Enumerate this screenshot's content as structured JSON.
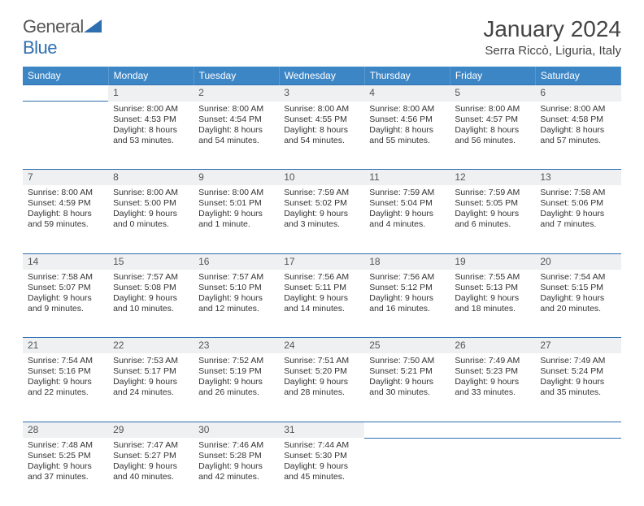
{
  "brand": {
    "part1": "General",
    "part2": "Blue"
  },
  "title": "January 2024",
  "location": "Serra Riccò, Liguria, Italy",
  "colors": {
    "header_bg": "#3d86c6",
    "header_text": "#ffffff",
    "rule": "#2f6fb0",
    "daynum_bg": "#eef0f1",
    "logo_blue": "#2f6fb0",
    "text": "#333333"
  },
  "weekdays": [
    "Sunday",
    "Monday",
    "Tuesday",
    "Wednesday",
    "Thursday",
    "Friday",
    "Saturday"
  ],
  "weeks": [
    [
      null,
      {
        "n": "1",
        "sr": "Sunrise: 8:00 AM",
        "ss": "Sunset: 4:53 PM",
        "d1": "Daylight: 8 hours",
        "d2": "and 53 minutes."
      },
      {
        "n": "2",
        "sr": "Sunrise: 8:00 AM",
        "ss": "Sunset: 4:54 PM",
        "d1": "Daylight: 8 hours",
        "d2": "and 54 minutes."
      },
      {
        "n": "3",
        "sr": "Sunrise: 8:00 AM",
        "ss": "Sunset: 4:55 PM",
        "d1": "Daylight: 8 hours",
        "d2": "and 54 minutes."
      },
      {
        "n": "4",
        "sr": "Sunrise: 8:00 AM",
        "ss": "Sunset: 4:56 PM",
        "d1": "Daylight: 8 hours",
        "d2": "and 55 minutes."
      },
      {
        "n": "5",
        "sr": "Sunrise: 8:00 AM",
        "ss": "Sunset: 4:57 PM",
        "d1": "Daylight: 8 hours",
        "d2": "and 56 minutes."
      },
      {
        "n": "6",
        "sr": "Sunrise: 8:00 AM",
        "ss": "Sunset: 4:58 PM",
        "d1": "Daylight: 8 hours",
        "d2": "and 57 minutes."
      }
    ],
    [
      {
        "n": "7",
        "sr": "Sunrise: 8:00 AM",
        "ss": "Sunset: 4:59 PM",
        "d1": "Daylight: 8 hours",
        "d2": "and 59 minutes."
      },
      {
        "n": "8",
        "sr": "Sunrise: 8:00 AM",
        "ss": "Sunset: 5:00 PM",
        "d1": "Daylight: 9 hours",
        "d2": "and 0 minutes."
      },
      {
        "n": "9",
        "sr": "Sunrise: 8:00 AM",
        "ss": "Sunset: 5:01 PM",
        "d1": "Daylight: 9 hours",
        "d2": "and 1 minute."
      },
      {
        "n": "10",
        "sr": "Sunrise: 7:59 AM",
        "ss": "Sunset: 5:02 PM",
        "d1": "Daylight: 9 hours",
        "d2": "and 3 minutes."
      },
      {
        "n": "11",
        "sr": "Sunrise: 7:59 AM",
        "ss": "Sunset: 5:04 PM",
        "d1": "Daylight: 9 hours",
        "d2": "and 4 minutes."
      },
      {
        "n": "12",
        "sr": "Sunrise: 7:59 AM",
        "ss": "Sunset: 5:05 PM",
        "d1": "Daylight: 9 hours",
        "d2": "and 6 minutes."
      },
      {
        "n": "13",
        "sr": "Sunrise: 7:58 AM",
        "ss": "Sunset: 5:06 PM",
        "d1": "Daylight: 9 hours",
        "d2": "and 7 minutes."
      }
    ],
    [
      {
        "n": "14",
        "sr": "Sunrise: 7:58 AM",
        "ss": "Sunset: 5:07 PM",
        "d1": "Daylight: 9 hours",
        "d2": "and 9 minutes."
      },
      {
        "n": "15",
        "sr": "Sunrise: 7:57 AM",
        "ss": "Sunset: 5:08 PM",
        "d1": "Daylight: 9 hours",
        "d2": "and 10 minutes."
      },
      {
        "n": "16",
        "sr": "Sunrise: 7:57 AM",
        "ss": "Sunset: 5:10 PM",
        "d1": "Daylight: 9 hours",
        "d2": "and 12 minutes."
      },
      {
        "n": "17",
        "sr": "Sunrise: 7:56 AM",
        "ss": "Sunset: 5:11 PM",
        "d1": "Daylight: 9 hours",
        "d2": "and 14 minutes."
      },
      {
        "n": "18",
        "sr": "Sunrise: 7:56 AM",
        "ss": "Sunset: 5:12 PM",
        "d1": "Daylight: 9 hours",
        "d2": "and 16 minutes."
      },
      {
        "n": "19",
        "sr": "Sunrise: 7:55 AM",
        "ss": "Sunset: 5:13 PM",
        "d1": "Daylight: 9 hours",
        "d2": "and 18 minutes."
      },
      {
        "n": "20",
        "sr": "Sunrise: 7:54 AM",
        "ss": "Sunset: 5:15 PM",
        "d1": "Daylight: 9 hours",
        "d2": "and 20 minutes."
      }
    ],
    [
      {
        "n": "21",
        "sr": "Sunrise: 7:54 AM",
        "ss": "Sunset: 5:16 PM",
        "d1": "Daylight: 9 hours",
        "d2": "and 22 minutes."
      },
      {
        "n": "22",
        "sr": "Sunrise: 7:53 AM",
        "ss": "Sunset: 5:17 PM",
        "d1": "Daylight: 9 hours",
        "d2": "and 24 minutes."
      },
      {
        "n": "23",
        "sr": "Sunrise: 7:52 AM",
        "ss": "Sunset: 5:19 PM",
        "d1": "Daylight: 9 hours",
        "d2": "and 26 minutes."
      },
      {
        "n": "24",
        "sr": "Sunrise: 7:51 AM",
        "ss": "Sunset: 5:20 PM",
        "d1": "Daylight: 9 hours",
        "d2": "and 28 minutes."
      },
      {
        "n": "25",
        "sr": "Sunrise: 7:50 AM",
        "ss": "Sunset: 5:21 PM",
        "d1": "Daylight: 9 hours",
        "d2": "and 30 minutes."
      },
      {
        "n": "26",
        "sr": "Sunrise: 7:49 AM",
        "ss": "Sunset: 5:23 PM",
        "d1": "Daylight: 9 hours",
        "d2": "and 33 minutes."
      },
      {
        "n": "27",
        "sr": "Sunrise: 7:49 AM",
        "ss": "Sunset: 5:24 PM",
        "d1": "Daylight: 9 hours",
        "d2": "and 35 minutes."
      }
    ],
    [
      {
        "n": "28",
        "sr": "Sunrise: 7:48 AM",
        "ss": "Sunset: 5:25 PM",
        "d1": "Daylight: 9 hours",
        "d2": "and 37 minutes."
      },
      {
        "n": "29",
        "sr": "Sunrise: 7:47 AM",
        "ss": "Sunset: 5:27 PM",
        "d1": "Daylight: 9 hours",
        "d2": "and 40 minutes."
      },
      {
        "n": "30",
        "sr": "Sunrise: 7:46 AM",
        "ss": "Sunset: 5:28 PM",
        "d1": "Daylight: 9 hours",
        "d2": "and 42 minutes."
      },
      {
        "n": "31",
        "sr": "Sunrise: 7:44 AM",
        "ss": "Sunset: 5:30 PM",
        "d1": "Daylight: 9 hours",
        "d2": "and 45 minutes."
      },
      null,
      null,
      null
    ]
  ]
}
